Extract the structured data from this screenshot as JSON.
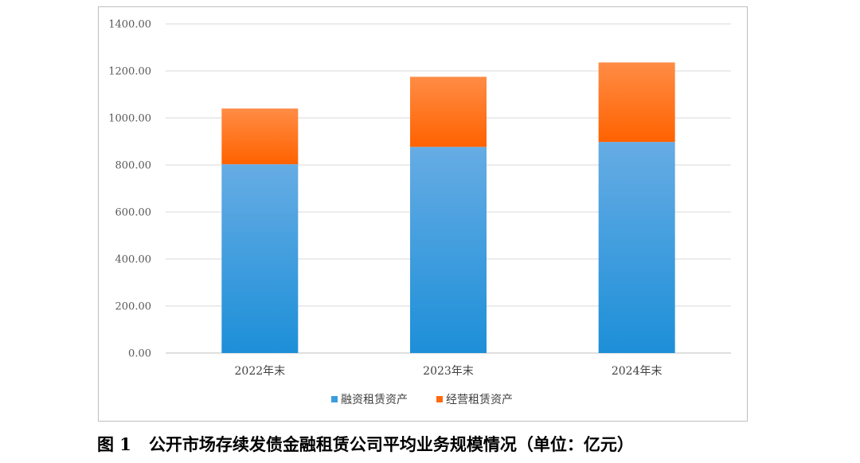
{
  "caption": {
    "figure_number": "图 1",
    "text": "公开市场存续发债金融租赁公司平均业务规模情况（单位：亿元）"
  },
  "chart_data": {
    "type": "bar",
    "stacked": true,
    "categories": [
      "2022年末",
      "2023年末",
      "2024年末"
    ],
    "series": [
      {
        "name": "融资租赁资产",
        "values": [
          803,
          877,
          898
        ],
        "color": "#3a9de0"
      },
      {
        "name": "经营租赁资产",
        "values": [
          237,
          298,
          338
        ],
        "color": "#ff6a10"
      }
    ],
    "ylim": [
      0,
      1400
    ],
    "yticks": [
      "0.00",
      "200.00",
      "400.00",
      "600.00",
      "800.00",
      "1000.00",
      "1200.00",
      "1400.00"
    ],
    "ytick_values": [
      0,
      200,
      400,
      600,
      800,
      1000,
      1200,
      1400
    ],
    "grid": true,
    "legend": "bottom",
    "title": "",
    "xlabel": "",
    "ylabel": ""
  }
}
